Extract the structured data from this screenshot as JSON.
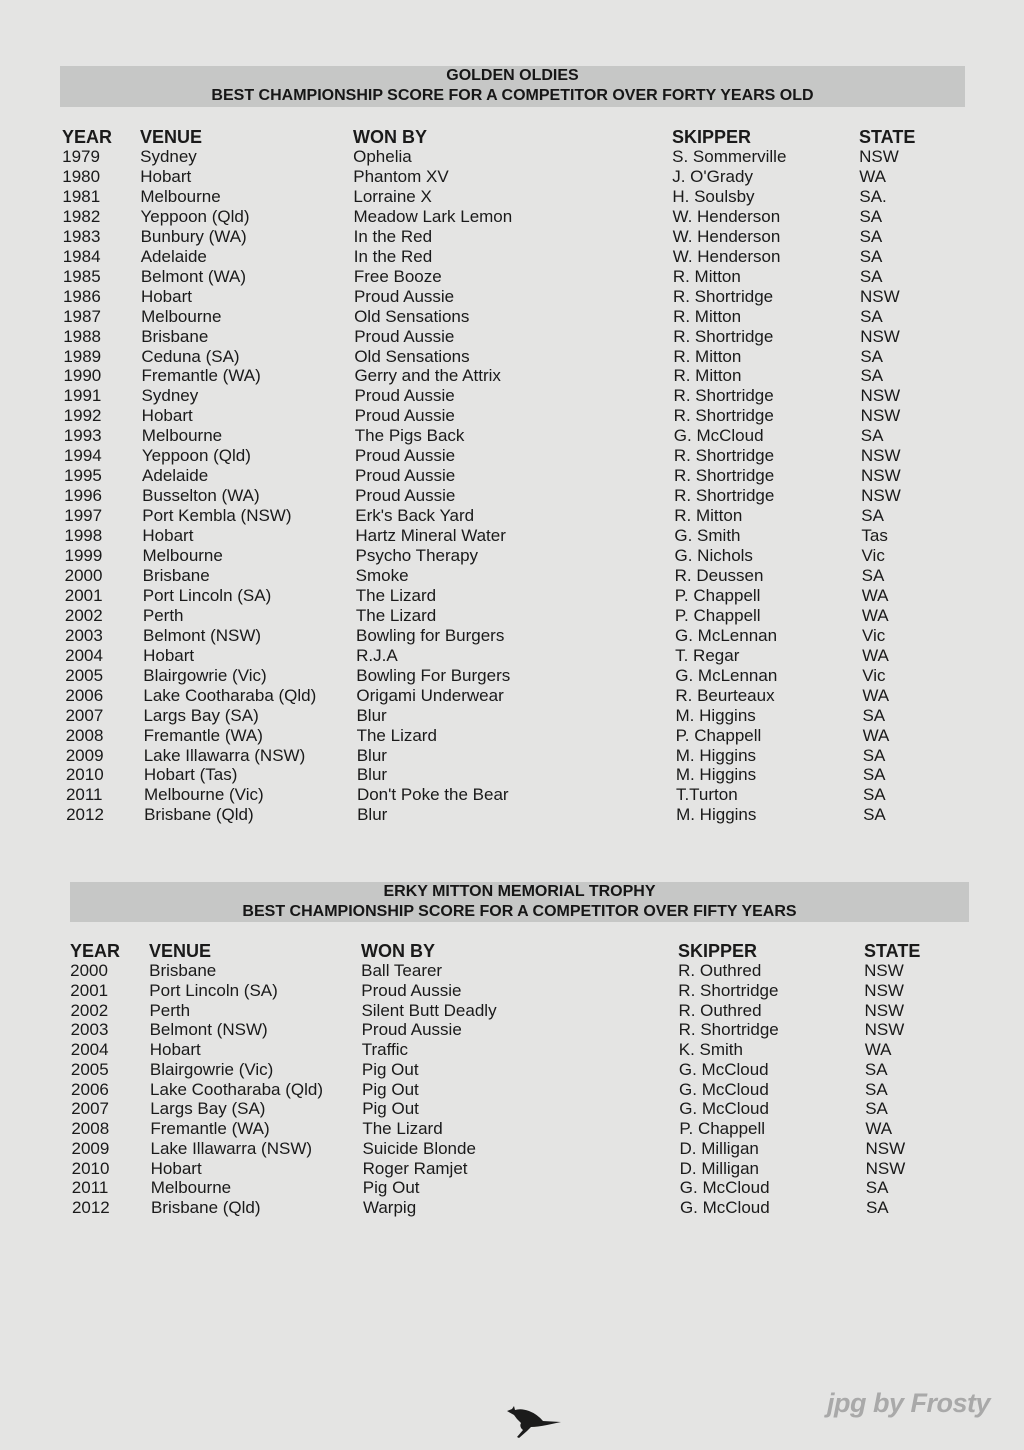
{
  "tables": [
    {
      "title": "GOLDEN OLDIES",
      "subtitle": "BEST CHAMPIONSHIP SCORE FOR A COMPETITOR OVER FORTY YEARS OLD",
      "columns": [
        "YEAR",
        "VENUE",
        "WON BY",
        "SKIPPER",
        "STATE"
      ],
      "rows": [
        [
          "1979",
          "Sydney",
          "Ophelia",
          "S. Sommerville",
          "NSW"
        ],
        [
          "1980",
          "Hobart",
          "Phantom XV",
          "J. O'Grady",
          "WA"
        ],
        [
          "1981",
          "Melbourne",
          "Lorraine X",
          "H. Soulsby",
          "SA."
        ],
        [
          "1982",
          "Yeppoon (Qld)",
          "Meadow Lark Lemon",
          "W. Henderson",
          "SA"
        ],
        [
          "1983",
          "Bunbury (WA)",
          "In the Red",
          "W. Henderson",
          "SA"
        ],
        [
          "1984",
          "Adelaide",
          "In the Red",
          "W. Henderson",
          "SA"
        ],
        [
          "1985",
          "Belmont (WA)",
          "Free Booze",
          "R. Mitton",
          "SA"
        ],
        [
          "1986",
          "Hobart",
          "Proud Aussie",
          "R. Shortridge",
          "NSW"
        ],
        [
          "1987",
          "Melbourne",
          "Old Sensations",
          "R. Mitton",
          "SA"
        ],
        [
          "1988",
          "Brisbane",
          "Proud Aussie",
          "R. Shortridge",
          "NSW"
        ],
        [
          "1989",
          "Ceduna (SA)",
          "Old Sensations",
          "R. Mitton",
          "SA"
        ],
        [
          "1990",
          "Fremantle (WA)",
          "Gerry and the Attrix",
          "R. Mitton",
          "SA"
        ],
        [
          "1991",
          "Sydney",
          "Proud Aussie",
          "R. Shortridge",
          "NSW"
        ],
        [
          "1992",
          "Hobart",
          "Proud Aussie",
          "R. Shortridge",
          "NSW"
        ],
        [
          "1993",
          "Melbourne",
          "The Pigs Back",
          "G. McCloud",
          "SA"
        ],
        [
          "1994",
          "Yeppoon (Qld)",
          "Proud Aussie",
          "R. Shortridge",
          "NSW"
        ],
        [
          "1995",
          "Adelaide",
          "Proud Aussie",
          "R. Shortridge",
          "NSW"
        ],
        [
          "1996",
          "Busselton (WA)",
          "Proud Aussie",
          "R. Shortridge",
          "NSW"
        ],
        [
          "1997",
          "Port Kembla (NSW)",
          "Erk's Back Yard",
          "R. Mitton",
          "SA"
        ],
        [
          "1998",
          "Hobart",
          "Hartz Mineral Water",
          "G. Smith",
          "Tas"
        ],
        [
          "1999",
          "Melbourne",
          "Psycho Therapy",
          "G. Nichols",
          "Vic"
        ],
        [
          "2000",
          "Brisbane",
          "Smoke",
          "R. Deussen",
          "SA"
        ],
        [
          "2001",
          "Port Lincoln (SA)",
          "The Lizard",
          "P. Chappell",
          "WA"
        ],
        [
          "2002",
          "Perth",
          "The Lizard",
          "P. Chappell",
          "WA"
        ],
        [
          "2003",
          "Belmont (NSW)",
          "Bowling for Burgers",
          "G. McLennan",
          "Vic"
        ],
        [
          "2004",
          "Hobart",
          "R.J.A",
          "T. Regar",
          "WA"
        ],
        [
          "2005",
          "Blairgowrie (Vic)",
          "Bowling For Burgers",
          "G. McLennan",
          "Vic"
        ],
        [
          "2006",
          "Lake Cootharaba (Qld)",
          "Origami Underwear",
          "R. Beurteaux",
          "WA"
        ],
        [
          "2007",
          "Largs Bay (SA)",
          "Blur",
          "M. Higgins",
          "SA"
        ],
        [
          "2008",
          "Fremantle (WA)",
          "The Lizard",
          "P. Chappell",
          "WA"
        ],
        [
          "2009",
          "Lake Illawarra (NSW)",
          "Blur",
          "M. Higgins",
          "SA"
        ],
        [
          "2010",
          "Hobart (Tas)",
          "Blur",
          "M. Higgins",
          "SA"
        ],
        [
          "2011",
          "Melbourne (Vic)",
          "Don't Poke the Bear",
          "T.Turton",
          "SA"
        ],
        [
          "2012",
          "Brisbane (Qld)",
          "Blur",
          "M. Higgins",
          "SA"
        ]
      ]
    },
    {
      "title": "ERKY MITTON MEMORIAL TROPHY",
      "subtitle": "BEST CHAMPIONSHIP SCORE FOR A COMPETITOR OVER FIFTY YEARS",
      "columns": [
        "YEAR",
        "VENUE",
        "WON BY",
        "SKIPPER",
        "STATE"
      ],
      "rows": [
        [
          "2000",
          "Brisbane",
          "Ball Tearer",
          "R. Outhred",
          "NSW"
        ],
        [
          "2001",
          "Port Lincoln (SA)",
          "Proud Aussie",
          "R. Shortridge",
          "NSW"
        ],
        [
          "2002",
          "Perth",
          "Silent Butt Deadly",
          "R. Outhred",
          "NSW"
        ],
        [
          "2003",
          "Belmont (NSW)",
          "Proud Aussie",
          "R. Shortridge",
          "NSW"
        ],
        [
          "2004",
          "Hobart",
          "Traffic",
          "K. Smith",
          "WA"
        ],
        [
          "2005",
          "Blairgowrie (Vic)",
          "Pig Out",
          "G. McCloud",
          "SA"
        ],
        [
          "2006",
          "Lake Cootharaba (Qld)",
          "Pig Out",
          "G. McCloud",
          "SA"
        ],
        [
          "2007",
          "Largs Bay (SA)",
          "Pig Out",
          "G. McCloud",
          "SA"
        ],
        [
          "2008",
          "Fremantle (WA)",
          "The Lizard",
          "P. Chappell",
          "WA"
        ],
        [
          "2009",
          "Lake Illawarra (NSW)",
          "Suicide Blonde",
          "D. Milligan",
          "NSW"
        ],
        [
          "2010",
          "Hobart",
          "Roger Ramjet",
          "D. Milligan",
          "NSW"
        ],
        [
          "2011",
          "Melbourne",
          "Pig Out",
          "G. McCloud",
          "SA"
        ],
        [
          "2012",
          "Brisbane (Qld)",
          "Warpig",
          "G. McCloud",
          "SA"
        ]
      ]
    }
  ],
  "footer": {
    "logo_icon": "kangaroo-icon",
    "watermark": "jpg by Frosty"
  }
}
